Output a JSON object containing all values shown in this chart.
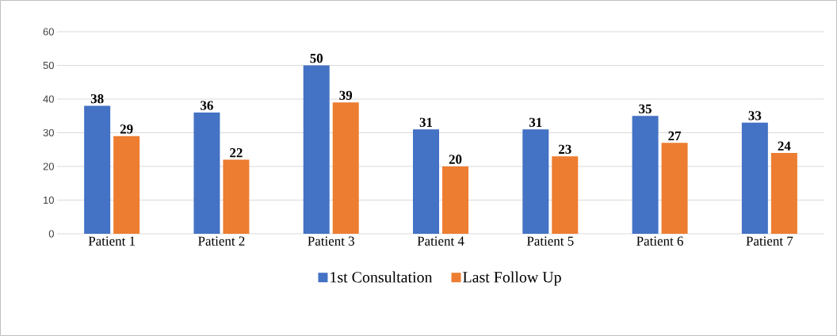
{
  "chart_data": {
    "type": "bar",
    "categories": [
      "Patient 1",
      "Patient 2",
      "Patient 3",
      "Patient 4",
      "Patient 5",
      "Patient 6",
      "Patient 7"
    ],
    "series": [
      {
        "name": "1st Consultation",
        "color": "#4472c4",
        "values": [
          38,
          36,
          50,
          31,
          31,
          35,
          33
        ]
      },
      {
        "name": "Last Follow Up",
        "color": "#ed7d31",
        "values": [
          29,
          22,
          39,
          20,
          23,
          27,
          24
        ]
      }
    ],
    "ylim": [
      0,
      60
    ],
    "yticks": [
      0,
      10,
      20,
      30,
      40,
      50,
      60
    ],
    "grid": "y",
    "legend": "bottom",
    "data_labels": true
  }
}
